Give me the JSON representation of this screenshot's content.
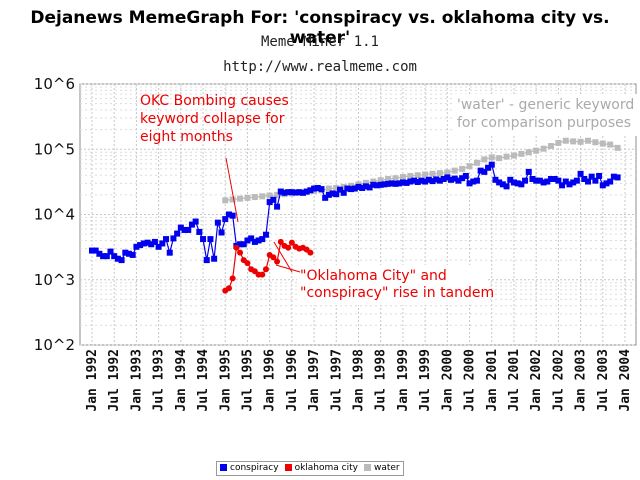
{
  "title": "Dejanews MemeGraph For: 'conspiracy vs. oklahoma city vs. water'",
  "subtitle": "Meme Miner 1.1",
  "url": "http://www.realmeme.com",
  "chart_data": {
    "type": "line",
    "yscale": "log",
    "ylim": [
      100,
      1000000
    ],
    "xlim": [
      "1992-01",
      "2004-01"
    ],
    "y_tick_labels": [
      "10^6",
      "10^5",
      "10^4",
      "10^3",
      "10^2"
    ],
    "y_tick_values": [
      1000000,
      100000,
      10000,
      1000,
      100
    ],
    "x_tick_labels": [
      "Jan 1992",
      "Jul 1992",
      "Jan 1993",
      "Jul 1993",
      "Jan 1994",
      "Jul 1994",
      "Jan 1995",
      "Jul 1995",
      "Jan 1996",
      "Jul 1996",
      "Jan 1997",
      "Jul 1997",
      "Jan 1998",
      "Jul 1998",
      "Jan 1999",
      "Jul 1999",
      "Jan 2000",
      "Jul 2000",
      "Jan 2001",
      "Jul 2001",
      "Jan 2002",
      "Jul 2002",
      "Jan 2003",
      "Jul 2003",
      "Jan 2004"
    ],
    "x_tick_values": [
      "1992-01",
      "1992-07",
      "1993-01",
      "1993-07",
      "1994-01",
      "1994-07",
      "1995-01",
      "1995-07",
      "1996-01",
      "1996-07",
      "1997-01",
      "1997-07",
      "1998-01",
      "1998-07",
      "1999-01",
      "1999-07",
      "2000-01",
      "2000-07",
      "2001-01",
      "2001-07",
      "2002-01",
      "2002-07",
      "2003-01",
      "2003-07",
      "2004-01"
    ],
    "grid": true,
    "legend_position": "bottom",
    "series": [
      {
        "name": "conspiracy",
        "color": "#0000ee",
        "marker": "square",
        "points": [
          [
            "1992-01",
            2800
          ],
          [
            "1992-02",
            2800
          ],
          [
            "1992-03",
            2500
          ],
          [
            "1992-04",
            2300
          ],
          [
            "1992-05",
            2300
          ],
          [
            "1992-06",
            2700
          ],
          [
            "1992-07",
            2300
          ],
          [
            "1992-08",
            2100
          ],
          [
            "1992-09",
            2000
          ],
          [
            "1992-10",
            2600
          ],
          [
            "1992-11",
            2500
          ],
          [
            "1992-12",
            2400
          ],
          [
            "1993-01",
            3200
          ],
          [
            "1993-02",
            3400
          ],
          [
            "1993-03",
            3600
          ],
          [
            "1993-04",
            3700
          ],
          [
            "1993-05",
            3500
          ],
          [
            "1993-06",
            3800
          ],
          [
            "1993-07",
            3200
          ],
          [
            "1993-08",
            3600
          ],
          [
            "1993-09",
            4200
          ],
          [
            "1993-10",
            2600
          ],
          [
            "1993-11",
            4300
          ],
          [
            "1993-12",
            5100
          ],
          [
            "1994-01",
            6300
          ],
          [
            "1994-02",
            5800
          ],
          [
            "1994-03",
            5800
          ],
          [
            "1994-04",
            7000
          ],
          [
            "1994-05",
            7800
          ],
          [
            "1994-06",
            5400
          ],
          [
            "1994-07",
            4200
          ],
          [
            "1994-08",
            2000
          ],
          [
            "1994-09",
            4200
          ],
          [
            "1994-10",
            2100
          ],
          [
            "1994-11",
            7500
          ],
          [
            "1994-12",
            5300
          ],
          [
            "1995-01",
            8500
          ],
          [
            "1995-02",
            10000
          ],
          [
            "1995-03",
            9600
          ],
          [
            "1995-04",
            3300
          ],
          [
            "1995-05",
            3500
          ],
          [
            "1995-06",
            3500
          ],
          [
            "1995-07",
            4000
          ],
          [
            "1995-08",
            4300
          ],
          [
            "1995-09",
            3800
          ],
          [
            "1995-10",
            4000
          ],
          [
            "1995-11",
            4200
          ],
          [
            "1995-12",
            4900
          ],
          [
            "1996-01",
            15500
          ],
          [
            "1996-02",
            16800
          ],
          [
            "1996-03",
            13200
          ],
          [
            "1996-04",
            22500
          ],
          [
            "1996-05",
            21500
          ],
          [
            "1996-06",
            22000
          ],
          [
            "1996-07",
            22000
          ],
          [
            "1996-08",
            21700
          ],
          [
            "1996-09",
            22000
          ],
          [
            "1996-10",
            21500
          ],
          [
            "1996-11",
            22500
          ],
          [
            "1996-12",
            23500
          ],
          [
            "1997-01",
            25000
          ],
          [
            "1997-02",
            25500
          ],
          [
            "1997-03",
            24500
          ],
          [
            "1997-04",
            18000
          ],
          [
            "1997-05",
            20000
          ],
          [
            "1997-06",
            21000
          ],
          [
            "1997-07",
            20500
          ],
          [
            "1997-08",
            24000
          ],
          [
            "1997-09",
            21500
          ],
          [
            "1997-10",
            25000
          ],
          [
            "1997-11",
            24500
          ],
          [
            "1997-12",
            25000
          ],
          [
            "1998-01",
            26500
          ],
          [
            "1998-02",
            25500
          ],
          [
            "1998-03",
            27000
          ],
          [
            "1998-04",
            26000
          ],
          [
            "1998-05",
            28500
          ],
          [
            "1998-06",
            28000
          ],
          [
            "1998-07",
            28500
          ],
          [
            "1998-08",
            29000
          ],
          [
            "1998-09",
            29500
          ],
          [
            "1998-10",
            30000
          ],
          [
            "1998-11",
            29500
          ],
          [
            "1998-12",
            30000
          ],
          [
            "1999-01",
            31000
          ],
          [
            "1999-02",
            30500
          ],
          [
            "1999-03",
            32000
          ],
          [
            "1999-04",
            33000
          ],
          [
            "1999-05",
            31500
          ],
          [
            "1999-06",
            33000
          ],
          [
            "1999-07",
            32000
          ],
          [
            "1999-08",
            34000
          ],
          [
            "1999-09",
            32500
          ],
          [
            "1999-10",
            34500
          ],
          [
            "1999-11",
            33000
          ],
          [
            "1999-12",
            35000
          ],
          [
            "2000-01",
            37000
          ],
          [
            "2000-02",
            34000
          ],
          [
            "2000-03",
            35500
          ],
          [
            "2000-04",
            33000
          ],
          [
            "2000-05",
            36000
          ],
          [
            "2000-06",
            39000
          ],
          [
            "2000-07",
            30000
          ],
          [
            "2000-08",
            32000
          ],
          [
            "2000-09",
            33000
          ],
          [
            "2000-10",
            47000
          ],
          [
            "2000-11",
            45000
          ],
          [
            "2000-12",
            52000
          ],
          [
            "2001-01",
            58000
          ],
          [
            "2001-02",
            34000
          ],
          [
            "2001-03",
            31000
          ],
          [
            "2001-04",
            29000
          ],
          [
            "2001-05",
            27000
          ],
          [
            "2001-06",
            34000
          ],
          [
            "2001-07",
            31000
          ],
          [
            "2001-08",
            30000
          ],
          [
            "2001-09",
            29000
          ],
          [
            "2001-10",
            33000
          ],
          [
            "2001-11",
            45000
          ],
          [
            "2001-12",
            35000
          ],
          [
            "2002-01",
            33000
          ],
          [
            "2002-02",
            33000
          ],
          [
            "2002-03",
            31000
          ],
          [
            "2002-04",
            32000
          ],
          [
            "2002-05",
            35000
          ],
          [
            "2002-06",
            35000
          ],
          [
            "2002-07",
            33000
          ],
          [
            "2002-08",
            28000
          ],
          [
            "2002-09",
            32000
          ],
          [
            "2002-10",
            29000
          ],
          [
            "2002-11",
            31000
          ],
          [
            "2002-12",
            33000
          ],
          [
            "2003-01",
            42000
          ],
          [
            "2003-02",
            35000
          ],
          [
            "2003-03",
            32000
          ],
          [
            "2003-04",
            38000
          ],
          [
            "2003-05",
            33000
          ],
          [
            "2003-06",
            39000
          ],
          [
            "2003-07",
            28000
          ],
          [
            "2003-08",
            30000
          ],
          [
            "2003-09",
            32000
          ],
          [
            "2003-10",
            38000
          ],
          [
            "2003-11",
            37000
          ]
        ]
      },
      {
        "name": "oklahoma city",
        "color": "#ee0000",
        "marker": "circle",
        "points": [
          [
            "1995-01",
            680
          ],
          [
            "1995-02",
            740
          ],
          [
            "1995-03",
            1050
          ],
          [
            "1995-04",
            3100
          ],
          [
            "1995-05",
            2600
          ],
          [
            "1995-06",
            2000
          ],
          [
            "1995-07",
            1800
          ],
          [
            "1995-08",
            1450
          ],
          [
            "1995-09",
            1350
          ],
          [
            "1995-10",
            1200
          ],
          [
            "1995-11",
            1200
          ],
          [
            "1995-12",
            1450
          ],
          [
            "1996-01",
            2400
          ],
          [
            "1996-02",
            2200
          ],
          [
            "1996-03",
            1900
          ],
          [
            "1996-04",
            3800
          ],
          [
            "1996-05",
            3300
          ],
          [
            "1996-06",
            3100
          ],
          [
            "1996-07",
            3700
          ],
          [
            "1996-08",
            3200
          ],
          [
            "1996-09",
            3000
          ],
          [
            "1996-10",
            3100
          ],
          [
            "1996-11",
            2900
          ],
          [
            "1996-12",
            2600
          ]
        ]
      },
      {
        "name": "water",
        "color": "#bbbbbb",
        "marker": "square",
        "points": [
          [
            "1995-01",
            16500
          ],
          [
            "1995-03",
            17000
          ],
          [
            "1995-05",
            17500
          ],
          [
            "1995-07",
            18000
          ],
          [
            "1995-09",
            18500
          ],
          [
            "1995-11",
            19000
          ],
          [
            "1996-01",
            19500
          ],
          [
            "1996-03",
            20000
          ],
          [
            "1996-05",
            20500
          ],
          [
            "1996-07",
            21000
          ],
          [
            "1996-09",
            21500
          ],
          [
            "1996-11",
            22000
          ],
          [
            "1997-01",
            23000
          ],
          [
            "1997-03",
            23500
          ],
          [
            "1997-05",
            25000
          ],
          [
            "1997-07",
            25500
          ],
          [
            "1997-09",
            26500
          ],
          [
            "1997-11",
            27500
          ],
          [
            "1998-01",
            29000
          ],
          [
            "1998-03",
            30500
          ],
          [
            "1998-05",
            32000
          ],
          [
            "1998-07",
            33500
          ],
          [
            "1998-09",
            35000
          ],
          [
            "1998-11",
            36000
          ],
          [
            "1999-01",
            37500
          ],
          [
            "1999-03",
            39000
          ],
          [
            "1999-05",
            40000
          ],
          [
            "1999-07",
            41000
          ],
          [
            "1999-09",
            42000
          ],
          [
            "1999-11",
            43000
          ],
          [
            "2000-01",
            44000
          ],
          [
            "2000-03",
            47000
          ],
          [
            "2000-05",
            50000
          ],
          [
            "2000-07",
            55000
          ],
          [
            "2000-09",
            62000
          ],
          [
            "2000-11",
            70000
          ],
          [
            "2001-01",
            75000
          ],
          [
            "2001-03",
            73000
          ],
          [
            "2001-05",
            77000
          ],
          [
            "2001-07",
            80000
          ],
          [
            "2001-09",
            85000
          ],
          [
            "2001-11",
            90000
          ],
          [
            "2002-01",
            95000
          ],
          [
            "2002-03",
            102000
          ],
          [
            "2002-05",
            112000
          ],
          [
            "2002-07",
            125000
          ],
          [
            "2002-09",
            135000
          ],
          [
            "2002-11",
            132000
          ],
          [
            "2003-01",
            130000
          ],
          [
            "2003-03",
            135000
          ],
          [
            "2003-05",
            128000
          ],
          [
            "2003-07",
            122000
          ],
          [
            "2003-09",
            118000
          ],
          [
            "2003-11",
            105000
          ]
        ]
      }
    ],
    "annotations": [
      {
        "lines": [
          "OKC Bombing causes",
          "keyword collapse for",
          "eight months"
        ],
        "color": "#ee0000",
        "fontsize": 14
      },
      {
        "lines": [
          "\"Oklahoma City\" and",
          "\"conspiracy\" rise in tandem"
        ],
        "color": "#ee0000",
        "fontsize": 14
      },
      {
        "lines": [
          "'water' - generic keyword",
          "for comparison purposes"
        ],
        "color": "#aaaaaa",
        "fontsize": 14
      }
    ]
  }
}
